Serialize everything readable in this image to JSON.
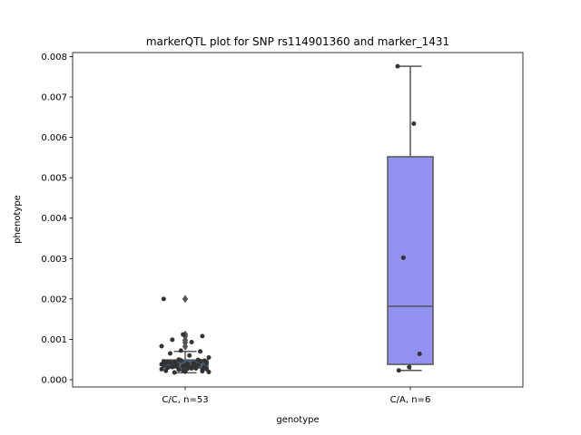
{
  "chart_data": {
    "type": "box",
    "title": "markerQTL plot for SNP rs114901360 and marker_1431",
    "xlabel": "genotype",
    "ylabel": "phenotype",
    "ylim": [
      -0.00018,
      0.0081
    ],
    "yticks": [
      0.0,
      0.001,
      0.002,
      0.003,
      0.004,
      0.005,
      0.006,
      0.007,
      0.008
    ],
    "ytick_labels": [
      "0.000",
      "0.001",
      "0.002",
      "0.003",
      "0.004",
      "0.005",
      "0.006",
      "0.007",
      "0.008"
    ],
    "grid": false,
    "legend": null,
    "categories": [
      "C/C, n=53",
      "C/A, n=6"
    ],
    "colors": {
      "box_cc": "#3d5f78",
      "box_ca": "#9191f2",
      "box_edge": "#555555",
      "point": "#333333",
      "flier": "#555555"
    },
    "boxes": [
      {
        "category": "C/C, n=53",
        "q1": 0.00029,
        "median": 0.00041,
        "q3": 0.00049,
        "whisker_low": 0.00017,
        "whisker_high": 0.0007,
        "fliers": [
          0.00082,
          0.00092,
          0.00098,
          0.00107,
          0.00112,
          0.002
        ]
      },
      {
        "category": "C/A, n=6",
        "q1": 0.00038,
        "median": 0.00182,
        "q3": 0.00552,
        "whisker_low": 0.00023,
        "whisker_high": 0.00776,
        "fliers": []
      }
    ],
    "points": [
      {
        "category": "C/C, n=53",
        "values": [
          0.00026,
          0.00028,
          0.00031,
          0.00024,
          0.00033,
          0.00037,
          0.00041,
          0.00044,
          0.00047,
          0.0002,
          0.00022,
          0.00035,
          0.00039,
          0.00042,
          0.00027,
          0.0003,
          0.00036,
          0.00025,
          0.00019,
          0.00032,
          0.00043,
          0.00046,
          0.00048,
          0.00038,
          0.00029,
          0.00034,
          0.00021,
          0.00023,
          0.00045,
          0.0004,
          0.00018,
          0.00031,
          0.00036,
          0.00042,
          0.00028,
          0.00033,
          0.00026,
          0.00039,
          0.00044,
          0.00049,
          0.0005,
          0.00055,
          0.0006,
          0.00065,
          0.0007,
          0.00072,
          0.00083,
          0.00093,
          0.00099,
          0.00108,
          0.00112,
          0.002,
          0.00035
        ]
      },
      {
        "category": "C/A, n=6",
        "values": [
          0.00776,
          0.00634,
          0.00302,
          0.00064,
          0.00031,
          0.00023
        ]
      }
    ]
  }
}
